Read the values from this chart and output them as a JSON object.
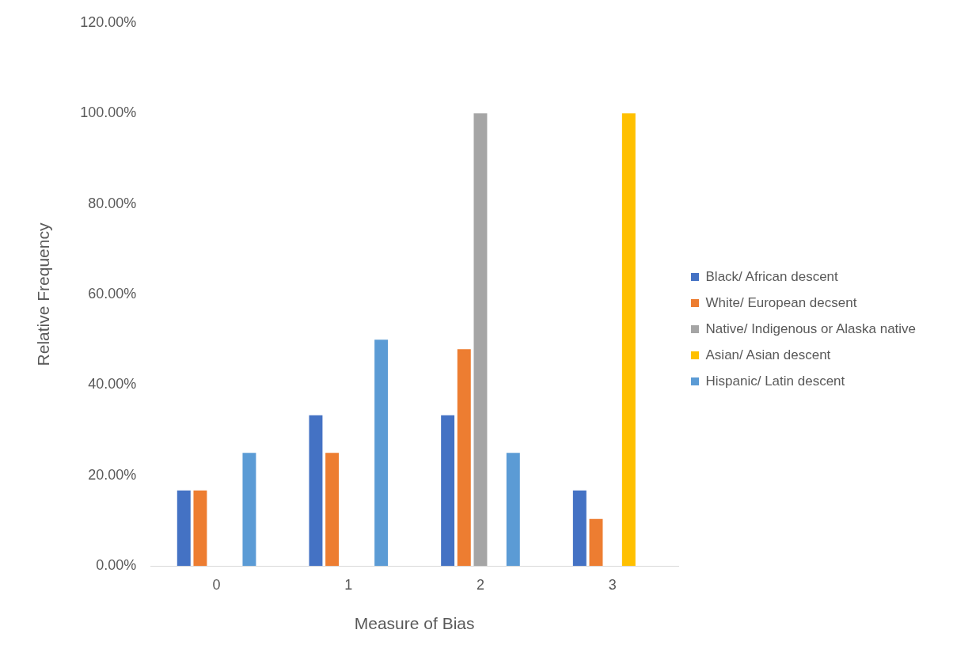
{
  "chart_data": {
    "type": "bar",
    "xlabel": "Measure of Bias",
    "ylabel": "Relative Frequency",
    "categories": [
      "0",
      "1",
      "2",
      "3"
    ],
    "series": [
      {
        "name": "Black/ African descent",
        "color": "#4472c4",
        "values": [
          16.7,
          33.3,
          33.3,
          16.7
        ]
      },
      {
        "name": "White/ European decsent",
        "color": "#ed7d31",
        "values": [
          16.7,
          25,
          47.9,
          10.4
        ]
      },
      {
        "name": "Native/ Indigenous or Alaska native",
        "color": "#a5a5a5",
        "values": [
          0,
          0,
          100,
          0
        ]
      },
      {
        "name": "Asian/ Asian descent",
        "color": "#ffc000",
        "values": [
          0,
          0,
          0,
          100
        ]
      },
      {
        "name": "Hispanic/ Latin descent",
        "color": "#5b9bd5",
        "values": [
          25,
          50,
          25,
          0
        ]
      }
    ],
    "ylim": [
      0,
      120
    ],
    "yticks": [
      {
        "value": 0,
        "label": "0.00%"
      },
      {
        "value": 20,
        "label": "20.00%"
      },
      {
        "value": 40,
        "label": "40.00%"
      },
      {
        "value": 60,
        "label": "60.00%"
      },
      {
        "value": 80,
        "label": "80.00%"
      },
      {
        "value": 100,
        "label": "100.00%"
      },
      {
        "value": 120,
        "label": "120.00%"
      }
    ],
    "grid": false,
    "legend": "right"
  }
}
